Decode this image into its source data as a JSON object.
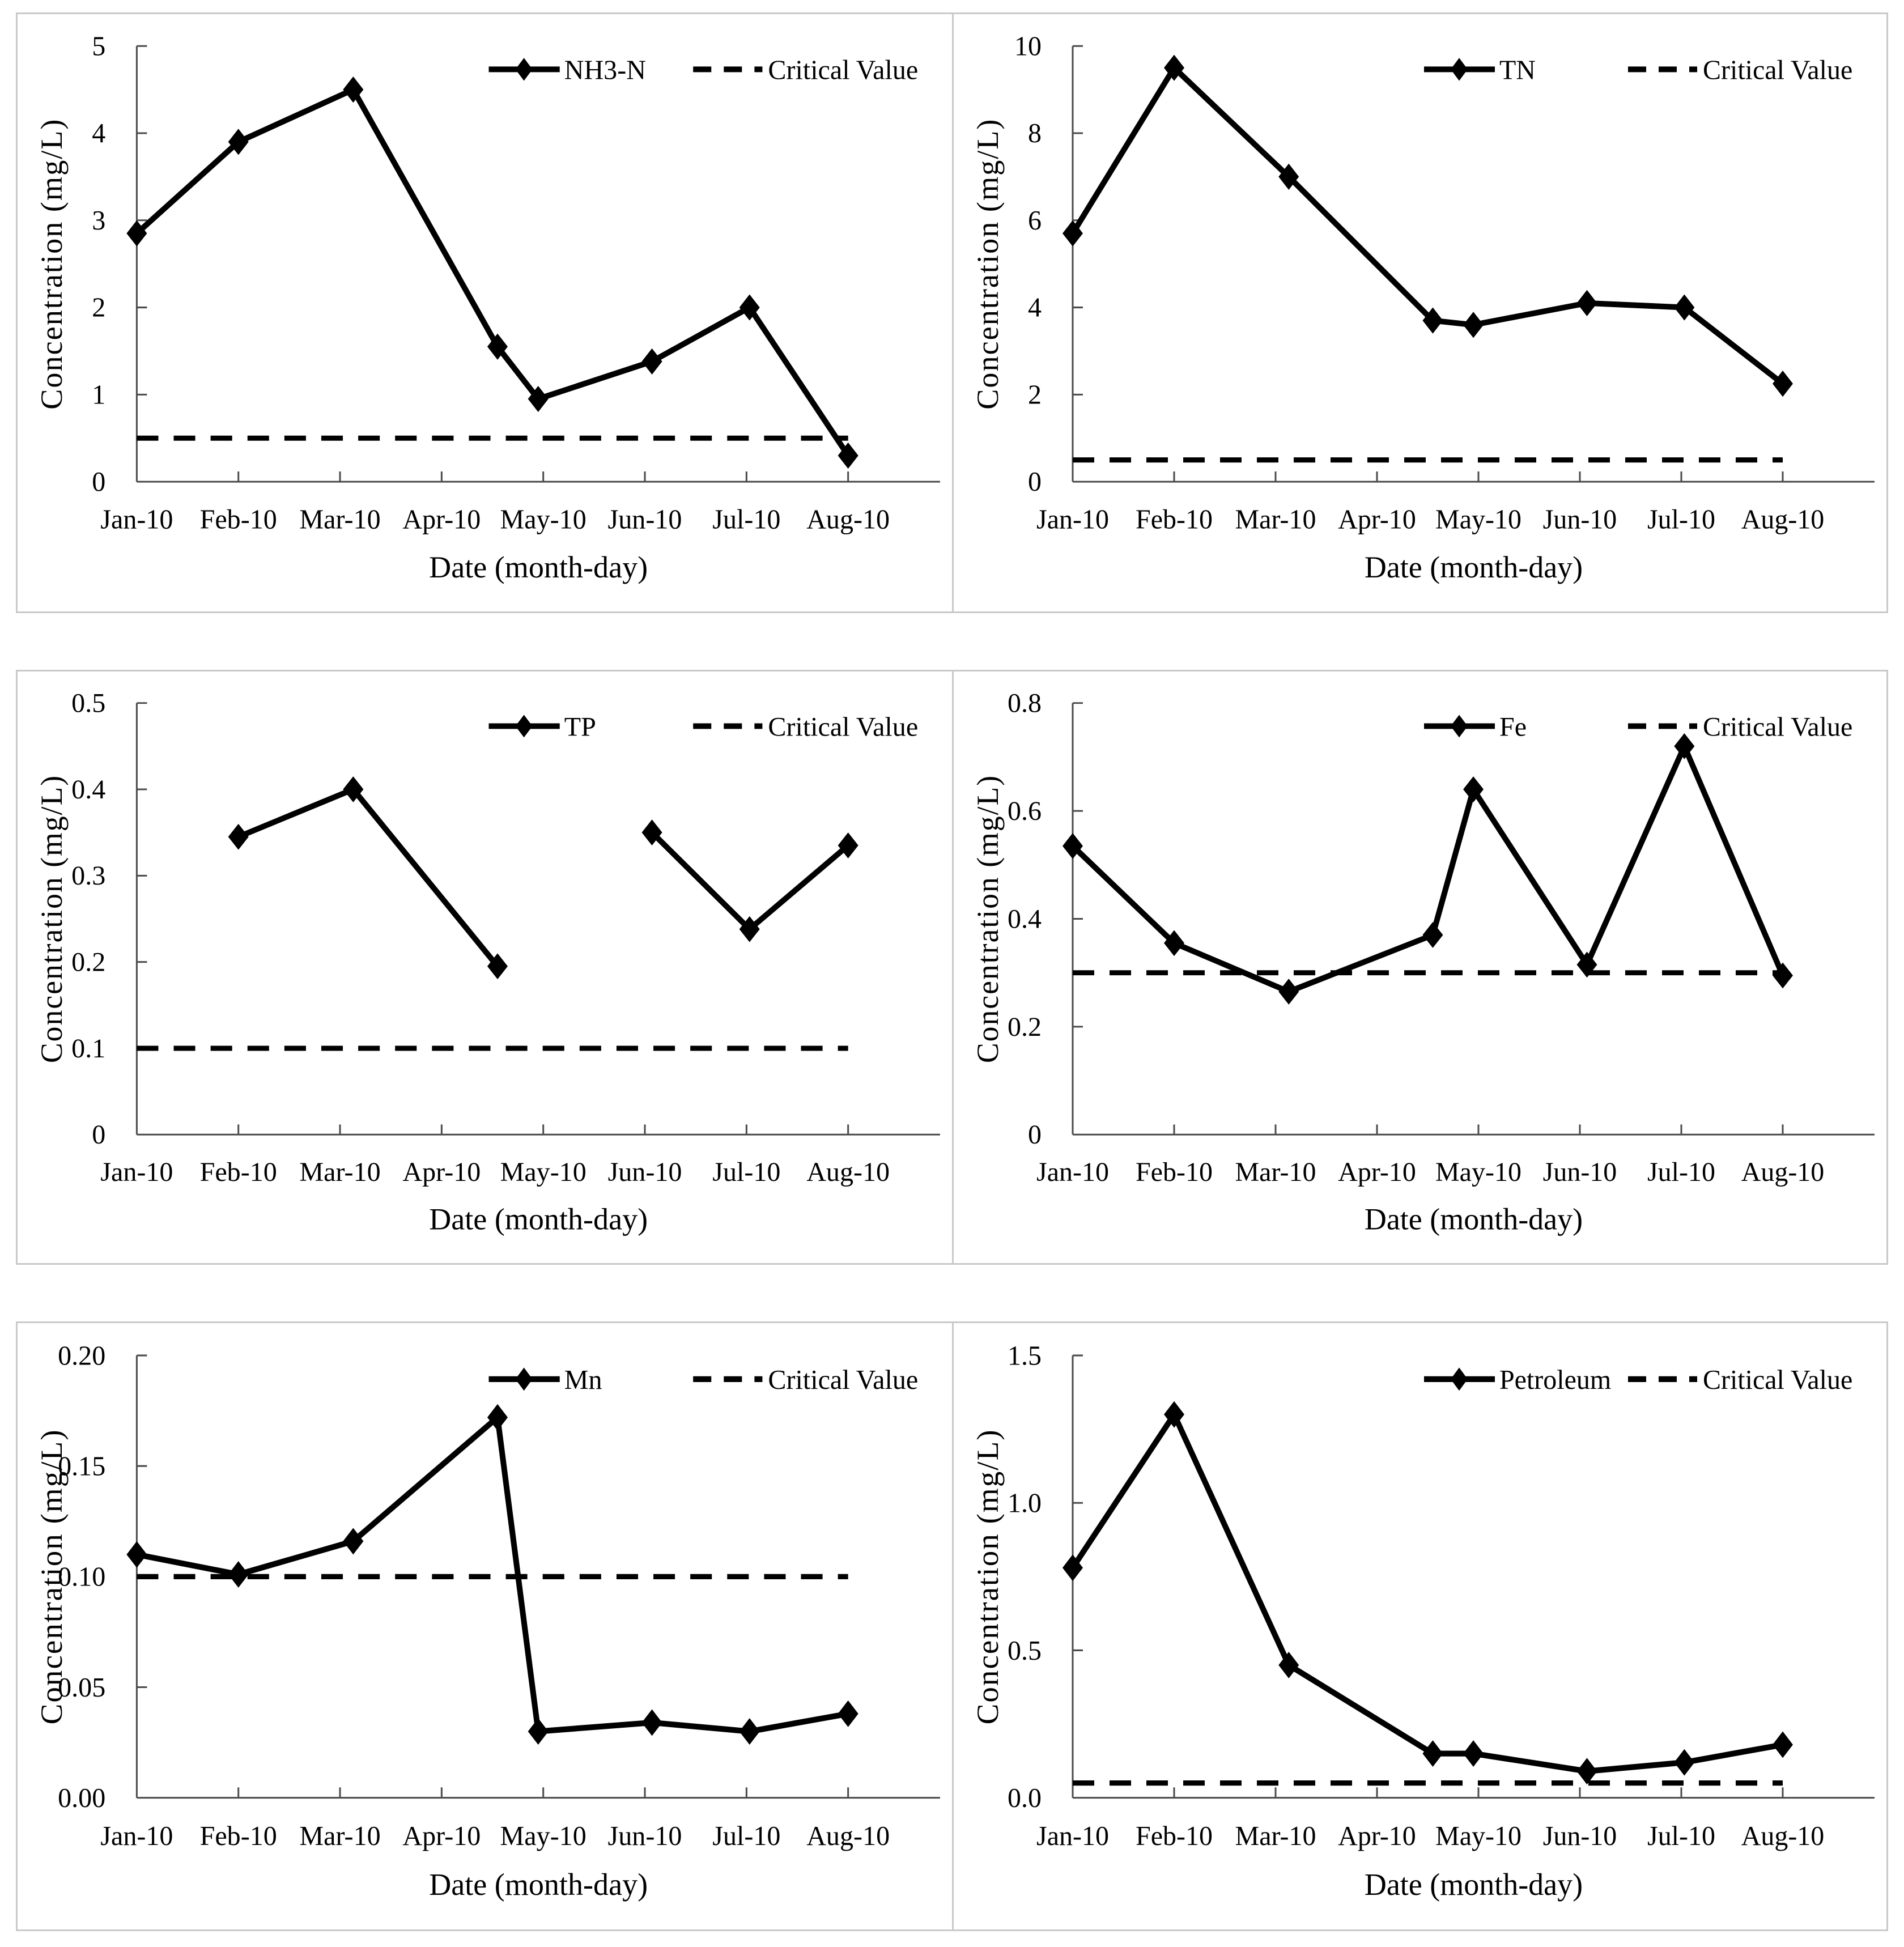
{
  "page": {
    "background": "#ffffff",
    "panel_border_color": "#c9c9c9",
    "axis_color": "#4a4a4a",
    "data_color": "#000000",
    "layout": "2 columns x 3 rows of line charts"
  },
  "chart_data": [
    {
      "type": "line",
      "title": "",
      "xlabel": "Date (month-day)",
      "ylabel": "Concentration (mg/L)",
      "x_tick_labels": [
        "Jan-10",
        "Feb-10",
        "Mar-10",
        "Apr-10",
        "May-10",
        "Jun-10",
        "Jul-10",
        "Aug-10"
      ],
      "ylim": [
        0,
        5
      ],
      "yticks": [
        0,
        1,
        2,
        3,
        4,
        5
      ],
      "ytick_labels": [
        "0",
        "1",
        "2",
        "3",
        "4",
        "5"
      ],
      "legend_entries": [
        "NH3-N",
        "Critical Value"
      ],
      "legend_position": "top-inside",
      "grid": false,
      "marker": "diamond",
      "series": [
        {
          "name": "NH3-N",
          "style": "solid",
          "x_months": [
            0,
            1,
            2.13,
            3.55,
            3.95,
            5.07,
            6.03,
            7
          ],
          "y": [
            2.85,
            3.9,
            4.5,
            1.55,
            0.95,
            1.38,
            2.0,
            0.3
          ],
          "segments": [
            [
              0,
              7
            ]
          ]
        }
      ],
      "critical_value": 0.5
    },
    {
      "type": "line",
      "title": "",
      "xlabel": "Date (month-day)",
      "ylabel": "Concentration (mg/L)",
      "x_tick_labels": [
        "Jan-10",
        "Feb-10",
        "Mar-10",
        "Apr-10",
        "May-10",
        "Jun-10",
        "Jul-10",
        "Aug-10"
      ],
      "ylim": [
        0,
        10
      ],
      "yticks": [
        0,
        2,
        4,
        6,
        8,
        10
      ],
      "ytick_labels": [
        "0",
        "2",
        "4",
        "6",
        "8",
        "10"
      ],
      "legend_entries": [
        "TN",
        "Critical Value"
      ],
      "legend_position": "top-inside",
      "grid": false,
      "marker": "diamond",
      "series": [
        {
          "name": "TN",
          "style": "solid",
          "x_months": [
            0,
            1,
            2.13,
            3.55,
            3.95,
            5.07,
            6.03,
            7
          ],
          "y": [
            5.7,
            9.5,
            7.0,
            3.7,
            3.6,
            4.1,
            4.0,
            2.25
          ],
          "segments": [
            [
              0,
              7
            ]
          ]
        }
      ],
      "critical_value": 0.5
    },
    {
      "type": "line",
      "title": "",
      "xlabel": "Date (month-day)",
      "ylabel": "Concentration (mg/L)",
      "x_tick_labels": [
        "Jan-10",
        "Feb-10",
        "Mar-10",
        "Apr-10",
        "May-10",
        "Jun-10",
        "Jul-10",
        "Aug-10"
      ],
      "ylim": [
        0,
        0.5
      ],
      "yticks": [
        0,
        0.1,
        0.2,
        0.3,
        0.4,
        0.5
      ],
      "ytick_labels": [
        "0",
        "0.1",
        "0.2",
        "0.3",
        "0.4",
        "0.5"
      ],
      "legend_entries": [
        "TP",
        "Critical Value"
      ],
      "legend_position": "top-inside",
      "grid": false,
      "marker": "diamond",
      "series": [
        {
          "name": "TP",
          "style": "solid",
          "x_months": [
            1,
            2.13,
            3.55,
            5.07,
            6.03,
            7
          ],
          "y": [
            0.345,
            0.4,
            0.195,
            0.35,
            0.238,
            0.335
          ],
          "segments": [
            [
              0,
              2
            ],
            [
              3,
              5
            ]
          ]
        }
      ],
      "critical_value": 0.1
    },
    {
      "type": "line",
      "title": "",
      "xlabel": "Date (month-day)",
      "ylabel": "Concentration (mg/L)",
      "x_tick_labels": [
        "Jan-10",
        "Feb-10",
        "Mar-10",
        "Apr-10",
        "May-10",
        "Jun-10",
        "Jul-10",
        "Aug-10"
      ],
      "ylim": [
        0,
        0.8
      ],
      "yticks": [
        0,
        0.2,
        0.4,
        0.6,
        0.8
      ],
      "ytick_labels": [
        "0",
        "0.2",
        "0.4",
        "0.6",
        "0.8"
      ],
      "legend_entries": [
        "Fe",
        "Critical Value"
      ],
      "legend_position": "top-inside",
      "grid": false,
      "marker": "diamond",
      "series": [
        {
          "name": "Fe",
          "style": "solid",
          "x_months": [
            0,
            1,
            2.13,
            3.55,
            3.95,
            5.07,
            6.03,
            7
          ],
          "y": [
            0.535,
            0.355,
            0.265,
            0.37,
            0.64,
            0.315,
            0.72,
            0.295
          ],
          "segments": [
            [
              0,
              7
            ]
          ]
        }
      ],
      "critical_value": 0.3
    },
    {
      "type": "line",
      "title": "",
      "xlabel": "Date (month-day)",
      "ylabel": "Concentration (mg/L)",
      "x_tick_labels": [
        "Jan-10",
        "Feb-10",
        "Mar-10",
        "Apr-10",
        "May-10",
        "Jun-10",
        "Jul-10",
        "Aug-10"
      ],
      "ylim": [
        0,
        0.2
      ],
      "yticks": [
        0,
        0.05,
        0.1,
        0.15,
        0.2
      ],
      "ytick_labels": [
        "0.00",
        "0.05",
        "0.10",
        "0.15",
        "0.20"
      ],
      "legend_entries": [
        "Mn",
        "Critical Value"
      ],
      "legend_position": "top-inside",
      "grid": false,
      "marker": "diamond",
      "series": [
        {
          "name": "Mn",
          "style": "solid",
          "x_months": [
            0,
            1,
            2.13,
            3.55,
            3.95,
            5.07,
            6.03,
            7
          ],
          "y": [
            0.11,
            0.101,
            0.116,
            0.172,
            0.03,
            0.034,
            0.03,
            0.038
          ],
          "segments": [
            [
              0,
              7
            ]
          ]
        }
      ],
      "critical_value": 0.1
    },
    {
      "type": "line",
      "title": "",
      "xlabel": "Date (month-day)",
      "ylabel": "Concentration (mg/L)",
      "x_tick_labels": [
        "Jan-10",
        "Feb-10",
        "Mar-10",
        "Apr-10",
        "May-10",
        "Jun-10",
        "Jul-10",
        "Aug-10"
      ],
      "ylim": [
        0,
        1.5
      ],
      "yticks": [
        0,
        0.5,
        1.0,
        1.5
      ],
      "ytick_labels": [
        "0.0",
        "0.5",
        "1.0",
        "1.5"
      ],
      "legend_entries": [
        "Petroleum",
        "Critical Value"
      ],
      "legend_position": "top-inside",
      "grid": false,
      "marker": "diamond",
      "series": [
        {
          "name": "Petroleum",
          "style": "solid",
          "x_months": [
            0,
            1,
            2.13,
            3.55,
            3.95,
            5.07,
            6.03,
            7
          ],
          "y": [
            0.78,
            1.3,
            0.45,
            0.15,
            0.15,
            0.09,
            0.12,
            0.18
          ],
          "segments": [
            [
              0,
              7
            ]
          ]
        }
      ],
      "critical_value": 0.05
    }
  ],
  "shared": {
    "critical_label": "Critical Value",
    "x_axis_note": "8 monthly sampling dates Jan-10 to Aug-10"
  }
}
